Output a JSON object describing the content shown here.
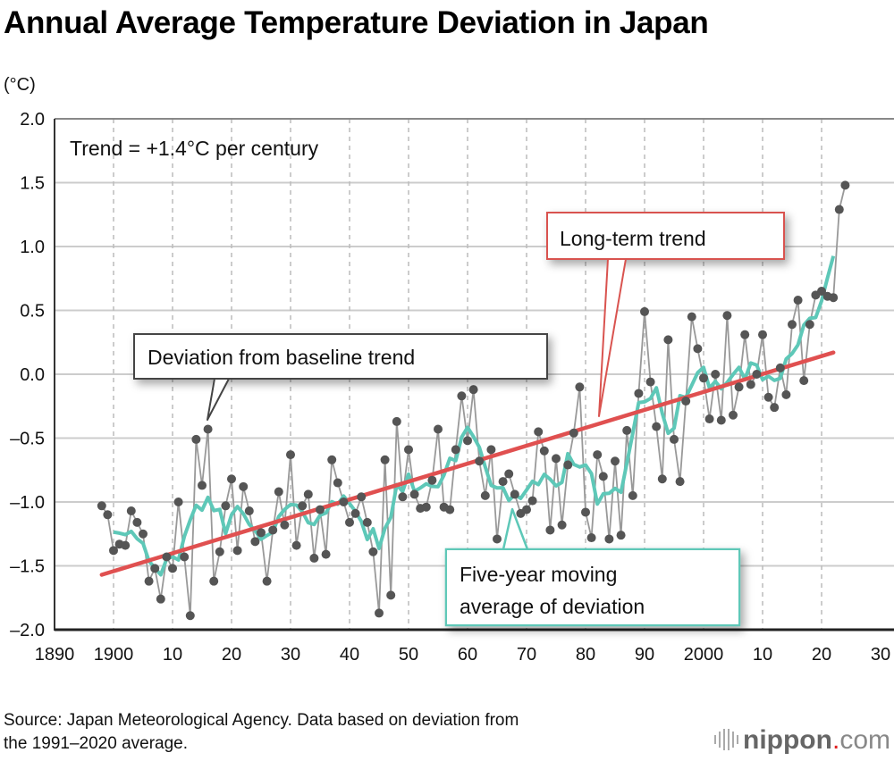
{
  "chart_data": {
    "type": "line",
    "title": "Annual Average Temperature Deviation in Japan",
    "ylabel": "(°C)",
    "xlabel": "",
    "xlim": [
      1890,
      2030
    ],
    "ylim": [
      -2.0,
      2.0
    ],
    "x_ticks": [
      1890,
      1900,
      1910,
      1920,
      1930,
      1940,
      1950,
      1960,
      1970,
      1980,
      1990,
      2000,
      2010,
      2020,
      2030
    ],
    "x_tick_labels": [
      "1890",
      "1900",
      "10",
      "20",
      "30",
      "40",
      "50",
      "60",
      "70",
      "80",
      "90",
      "2000",
      "10",
      "20",
      "30"
    ],
    "y_ticks": [
      2.0,
      1.5,
      1.0,
      0.5,
      0.0,
      -0.5,
      -1.0,
      -1.5,
      -2.0
    ],
    "y_tick_labels": [
      "2.0",
      "1.5",
      "1.0",
      "0.5",
      "0.0",
      "–0.5",
      "–1.0",
      "–1.5",
      "–2.0"
    ],
    "grid": true,
    "start_year": 1898,
    "values": [
      -1.03,
      -1.1,
      -1.38,
      -1.33,
      -1.34,
      -1.07,
      -1.16,
      -1.25,
      -1.62,
      -1.52,
      -1.76,
      -1.43,
      -1.52,
      -1.0,
      -1.43,
      -1.89,
      -0.51,
      -0.87,
      -0.43,
      -1.62,
      -1.39,
      -1.03,
      -0.82,
      -1.38,
      -0.88,
      -1.07,
      -1.31,
      -1.24,
      -1.62,
      -1.22,
      -0.92,
      -1.18,
      -0.63,
      -1.34,
      -1.03,
      -0.94,
      -1.44,
      -1.06,
      -1.41,
      -0.67,
      -0.85,
      -1.0,
      -1.16,
      -1.09,
      -0.96,
      -1.16,
      -1.39,
      -1.87,
      -0.67,
      -1.73,
      -0.37,
      -0.96,
      -0.59,
      -0.94,
      -1.05,
      -1.04,
      -0.83,
      -0.43,
      -1.04,
      -1.06,
      -0.59,
      -0.17,
      -0.52,
      -0.12,
      -0.68,
      -0.95,
      -0.59,
      -1.29,
      -0.84,
      -0.78,
      -0.94,
      -1.09,
      -1.06,
      -0.99,
      -0.45,
      -0.6,
      -1.22,
      -0.66,
      -1.18,
      -0.71,
      -0.46,
      -0.1,
      -1.08,
      -1.28,
      -0.63,
      -0.8,
      -1.29,
      -0.68,
      -1.26,
      -0.44,
      -0.95,
      -0.15,
      0.49,
      -0.06,
      -0.41,
      -0.82,
      0.27,
      -0.51,
      -0.84,
      -0.21,
      0.45,
      0.2,
      -0.03,
      -0.35,
      0.0,
      -0.36,
      0.46,
      -0.32,
      -0.1,
      0.31,
      -0.08,
      0.0,
      0.31,
      -0.18,
      -0.26,
      0.05,
      -0.16,
      0.39,
      0.58,
      -0.05,
      0.39,
      0.62,
      0.65,
      0.61,
      0.6,
      1.29,
      1.48
    ],
    "moving_average_window": 5,
    "trend": {
      "x": [
        1898,
        2022
      ],
      "y": [
        -1.57,
        0.17
      ]
    },
    "colors": {
      "points": "#555555",
      "point_line": "#999999",
      "moving_average": "#5ec8b8",
      "trend": "#e05050",
      "grid": "#cccccc"
    },
    "annotations": {
      "trend_note": "Trend = +1.4°C per century",
      "long_term": "Long-term trend",
      "deviation": "Deviation from baseline trend",
      "moving_avg_line1": "Five-year moving",
      "moving_avg_line2": "average of deviation"
    }
  },
  "footer": {
    "source_line1": "Source: Japan Meteorological Agency. Data based on deviation from",
    "source_line2": "the 1991–2020 average.",
    "logo": "nippon.com"
  }
}
